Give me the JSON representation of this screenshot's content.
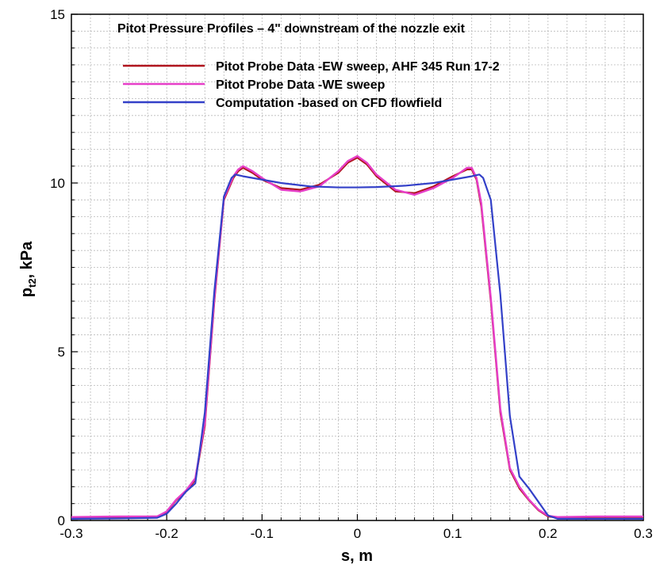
{
  "chart_data": {
    "type": "line",
    "title": "Pitot Pressure Profiles – 4\" downstream of the nozzle exit",
    "xlabel": "s, m",
    "ylabel": {
      "main": "p",
      "sub": "t2",
      "rest": ", kPa"
    },
    "xlim": [
      -0.3,
      0.3
    ],
    "ylim": [
      0,
      15
    ],
    "x_ticks": [
      "-0.3",
      "-0.2",
      "-0.1",
      "0",
      "0.1",
      "0.2",
      "0.3"
    ],
    "y_ticks": [
      "0",
      "5",
      "10",
      "15"
    ],
    "grid": true,
    "legend_position": "top-center",
    "series": [
      {
        "name": "Pitot Probe Data -EW sweep, AHF 345 Run 17-2",
        "color": "#b0151e",
        "x": [
          -0.3,
          -0.25,
          -0.21,
          -0.2,
          -0.19,
          -0.18,
          -0.17,
          -0.16,
          -0.15,
          -0.14,
          -0.13,
          -0.125,
          -0.12,
          -0.11,
          -0.1,
          -0.08,
          -0.06,
          -0.04,
          -0.02,
          -0.01,
          0.0,
          0.01,
          0.02,
          0.04,
          0.06,
          0.08,
          0.1,
          0.115,
          0.12,
          0.125,
          0.13,
          0.14,
          0.15,
          0.16,
          0.17,
          0.18,
          0.19,
          0.2,
          0.21,
          0.25,
          0.3
        ],
        "y": [
          0.08,
          0.1,
          0.12,
          0.25,
          0.6,
          0.85,
          1.2,
          2.8,
          6.5,
          9.5,
          10.15,
          10.35,
          10.45,
          10.3,
          10.1,
          9.85,
          9.8,
          9.95,
          10.3,
          10.6,
          10.75,
          10.55,
          10.2,
          9.75,
          9.7,
          9.9,
          10.2,
          10.4,
          10.4,
          10.1,
          9.3,
          6.5,
          3.2,
          1.5,
          0.95,
          0.6,
          0.3,
          0.12,
          0.08,
          0.1,
          0.1
        ]
      },
      {
        "name": "Pitot Probe Data -WE sweep",
        "color": "#e63ec8",
        "x": [
          -0.3,
          -0.25,
          -0.21,
          -0.2,
          -0.19,
          -0.18,
          -0.17,
          -0.16,
          -0.15,
          -0.14,
          -0.13,
          -0.125,
          -0.12,
          -0.11,
          -0.1,
          -0.08,
          -0.06,
          -0.04,
          -0.02,
          -0.01,
          0.0,
          0.01,
          0.02,
          0.04,
          0.06,
          0.08,
          0.1,
          0.115,
          0.12,
          0.125,
          0.13,
          0.14,
          0.15,
          0.16,
          0.17,
          0.18,
          0.19,
          0.2,
          0.21,
          0.25,
          0.3
        ],
        "y": [
          0.1,
          0.12,
          0.12,
          0.27,
          0.62,
          0.88,
          1.25,
          2.9,
          6.6,
          9.55,
          10.2,
          10.4,
          10.5,
          10.35,
          10.15,
          9.8,
          9.75,
          9.9,
          10.35,
          10.65,
          10.8,
          10.6,
          10.25,
          9.8,
          9.65,
          9.85,
          10.15,
          10.45,
          10.45,
          10.15,
          9.4,
          6.6,
          3.3,
          1.55,
          1.0,
          0.62,
          0.32,
          0.14,
          0.1,
          0.12,
          0.12
        ]
      },
      {
        "name": "Computation -based on CFD flowfield",
        "color": "#3340c8",
        "x": [
          -0.3,
          -0.25,
          -0.21,
          -0.2,
          -0.19,
          -0.18,
          -0.17,
          -0.16,
          -0.15,
          -0.14,
          -0.132,
          -0.128,
          -0.12,
          -0.1,
          -0.08,
          -0.05,
          -0.02,
          0.0,
          0.02,
          0.05,
          0.08,
          0.1,
          0.12,
          0.128,
          0.132,
          0.14,
          0.15,
          0.16,
          0.17,
          0.18,
          0.19,
          0.2,
          0.21,
          0.25,
          0.3
        ],
        "y": [
          0.05,
          0.06,
          0.08,
          0.2,
          0.5,
          0.85,
          1.1,
          3.2,
          6.8,
          9.6,
          10.15,
          10.25,
          10.2,
          10.1,
          10.0,
          9.9,
          9.87,
          9.87,
          9.88,
          9.92,
          10.0,
          10.1,
          10.2,
          10.25,
          10.15,
          9.5,
          6.7,
          3.1,
          1.3,
          0.95,
          0.55,
          0.15,
          0.05,
          0.05,
          0.05
        ]
      }
    ]
  }
}
